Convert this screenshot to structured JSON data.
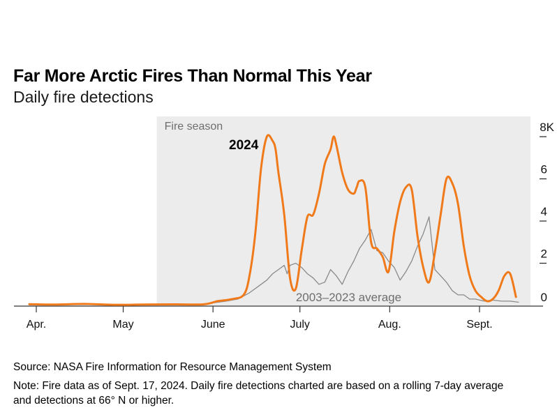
{
  "title": "Far More Arctic Fires Than Normal This Year",
  "subtitle": "Daily fire detections",
  "source": "Source: NASA Fire Information for Resource Management System",
  "note_line1": "Note: Fire data as of Sept. 17, 2024. Daily fire detections charted are based on a rolling 7-day average",
  "note_line2": "and detections at 66° N or higher.",
  "chart_data": {
    "type": "line",
    "shaded_region": {
      "label": "Fire season",
      "start": "05-15",
      "end": "09-21"
    },
    "x_ticks": [
      "Apr.",
      "May",
      "June",
      "July",
      "Aug.",
      "Sept."
    ],
    "y_ticks": [
      "0",
      "2",
      "4",
      "6",
      "8K"
    ],
    "ylim": [
      0,
      8000
    ],
    "xlim": [
      "04-01",
      "09-21"
    ],
    "colors": {
      "2024": "#f07a1a",
      "average": "#8a8a8a",
      "shade": "#ececec"
    },
    "series": [
      {
        "name": "2024",
        "x": [
          "04-01",
          "04-10",
          "04-20",
          "04-30",
          "05-10",
          "05-20",
          "05-31",
          "06-05",
          "06-10",
          "06-14",
          "06-16",
          "06-18",
          "06-20",
          "06-22",
          "06-24",
          "06-25",
          "06-26",
          "06-28",
          "06-30",
          "07-02",
          "07-04",
          "07-06",
          "07-08",
          "07-10",
          "07-12",
          "07-14",
          "07-15",
          "07-16",
          "07-18",
          "07-20",
          "07-22",
          "07-23",
          "07-24",
          "07-26",
          "07-28",
          "07-30",
          "08-01",
          "08-03",
          "08-05",
          "08-07",
          "08-09",
          "08-11",
          "08-13",
          "08-15",
          "08-17",
          "08-19",
          "08-21",
          "08-23",
          "08-25",
          "08-27",
          "08-29",
          "08-31",
          "09-02",
          "09-04",
          "09-06",
          "09-08",
          "09-10",
          "09-12",
          "09-14",
          "09-16"
        ],
        "values": [
          60,
          40,
          70,
          30,
          40,
          50,
          50,
          200,
          300,
          500,
          1400,
          3400,
          6500,
          8000,
          7800,
          7400,
          6300,
          4300,
          1300,
          800,
          2600,
          4200,
          4300,
          5300,
          6700,
          7400,
          8000,
          7600,
          6300,
          5500,
          5300,
          5600,
          5900,
          5600,
          3000,
          2700,
          2300,
          1600,
          3500,
          4900,
          5600,
          5500,
          3300,
          1800,
          1100,
          2500,
          4300,
          6000,
          5800,
          4800,
          2800,
          1400,
          700,
          400,
          200,
          300,
          700,
          1400,
          1500,
          400
        ]
      },
      {
        "name": "2003–2023 average",
        "x": [
          "04-01",
          "05-01",
          "05-31",
          "06-08",
          "06-12",
          "06-16",
          "06-19",
          "06-22",
          "06-24",
          "06-26",
          "06-28",
          "06-29",
          "06-30",
          "07-02",
          "07-04",
          "07-06",
          "07-08",
          "07-10",
          "07-12",
          "07-14",
          "07-16",
          "07-18",
          "07-20",
          "07-22",
          "07-24",
          "07-26",
          "07-28",
          "07-30",
          "08-01",
          "08-03",
          "08-05",
          "08-07",
          "08-09",
          "08-11",
          "08-13",
          "08-15",
          "08-17",
          "08-19",
          "08-21",
          "08-23",
          "08-25",
          "08-27",
          "08-29",
          "08-31",
          "09-02",
          "09-05",
          "09-08",
          "09-11",
          "09-14",
          "09-17"
        ],
        "values": [
          30,
          40,
          60,
          200,
          300,
          600,
          900,
          1200,
          1500,
          1700,
          1900,
          1500,
          1900,
          2000,
          1800,
          1500,
          1300,
          1000,
          1100,
          1700,
          1400,
          1000,
          1600,
          2100,
          2700,
          3100,
          3600,
          2600,
          2500,
          2100,
          1800,
          1200,
          1600,
          2100,
          2800,
          3400,
          4200,
          1700,
          1400,
          1100,
          700,
          500,
          500,
          300,
          300,
          200,
          250,
          200,
          200,
          150
        ]
      }
    ],
    "labels": [
      {
        "text": "2024",
        "series": "2024"
      },
      {
        "text": "2003–2023 average",
        "series": "average"
      }
    ]
  }
}
